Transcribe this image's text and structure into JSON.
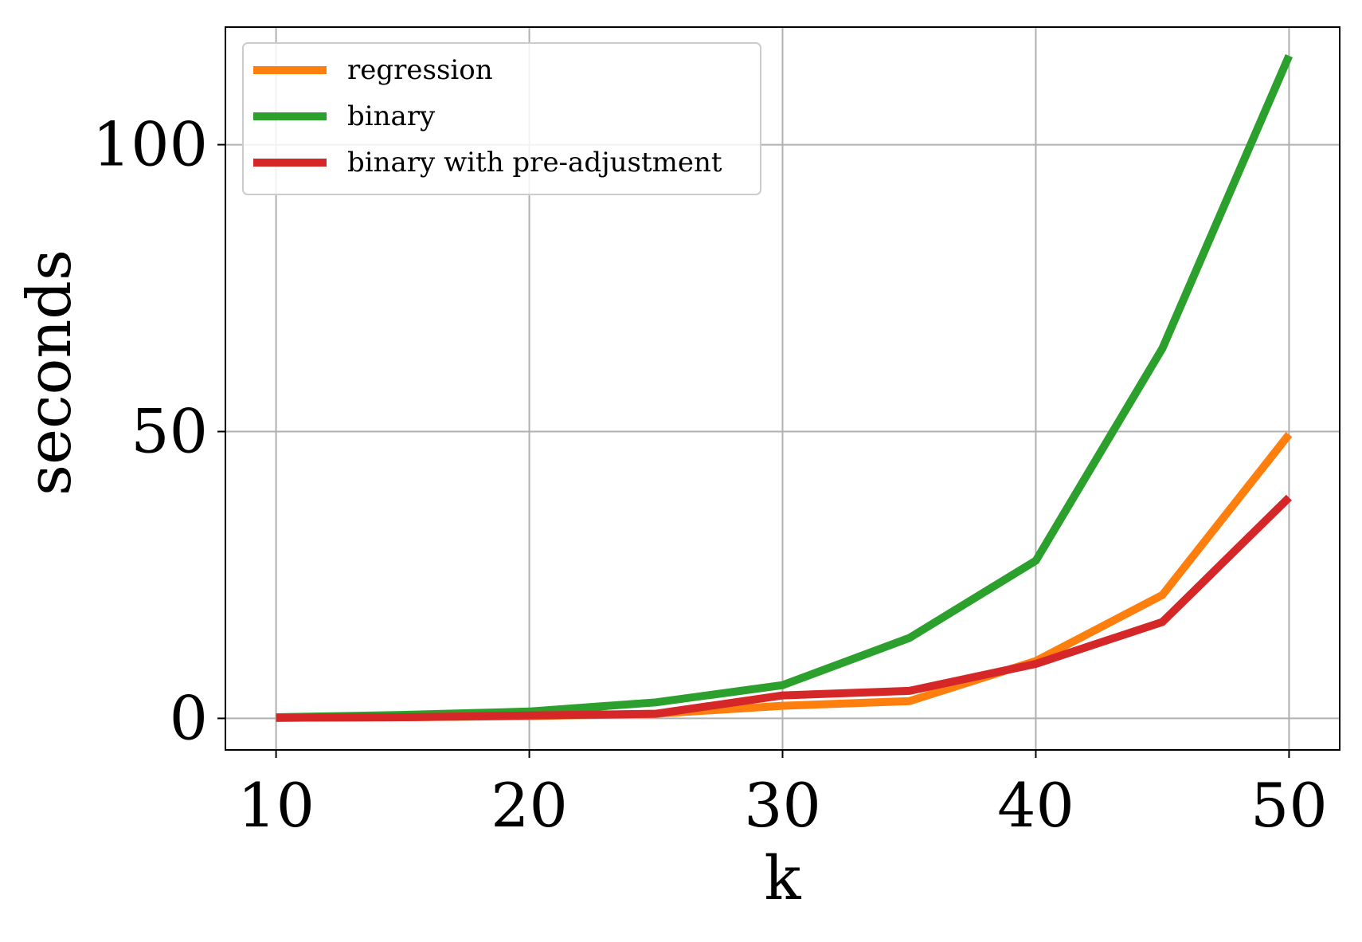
{
  "chart_data": {
    "type": "line",
    "xlabel": "k",
    "ylabel": "seconds",
    "xlim": [
      8,
      52
    ],
    "ylim": [
      -5.5,
      120.5
    ],
    "xticks": [
      10,
      20,
      30,
      40,
      50
    ],
    "yticks": [
      0,
      50,
      100
    ],
    "grid": true,
    "legend_position": "top-left",
    "x": [
      10,
      15,
      20,
      25,
      30,
      35,
      40,
      45,
      50
    ],
    "series": [
      {
        "name": "regression",
        "color": "#ff7f0e",
        "values": [
          0.1,
          0.2,
          0.4,
          0.8,
          2.2,
          3.0,
          10.0,
          21.5,
          49.5
        ]
      },
      {
        "name": "binary",
        "color": "#2ca02c",
        "values": [
          0.2,
          0.6,
          1.2,
          2.8,
          5.8,
          14.0,
          27.5,
          64.5,
          115.5
        ]
      },
      {
        "name": "binary with pre-adjustment",
        "color": "#d62728",
        "values": [
          0.1,
          0.2,
          0.5,
          0.8,
          4.0,
          4.8,
          9.5,
          16.8,
          38.5
        ]
      }
    ]
  }
}
